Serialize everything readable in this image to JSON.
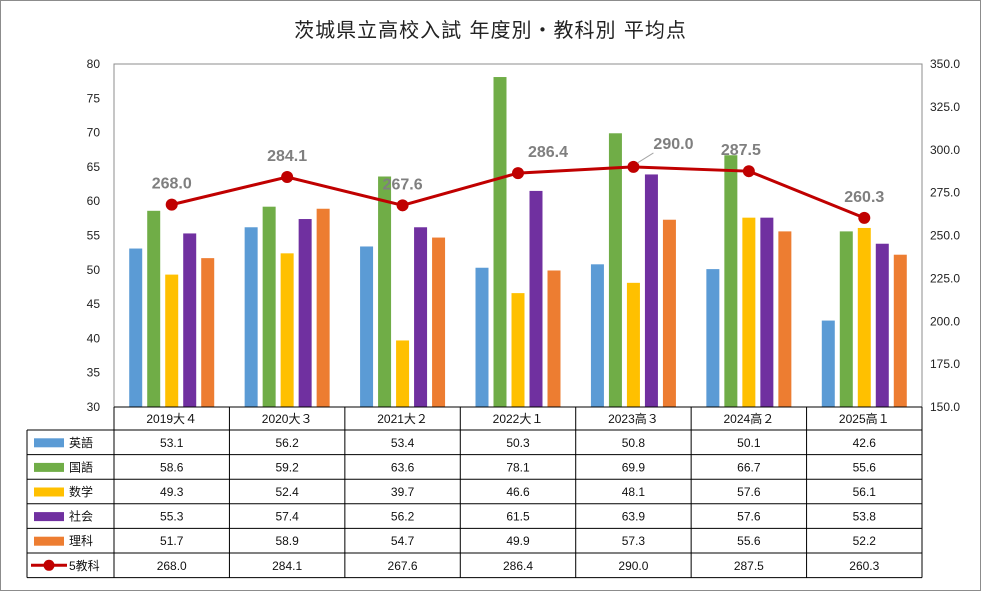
{
  "chart_data": {
    "type": "bar",
    "title": "茨城県立高校入試 年度別・教科別 平均点",
    "categories": [
      "2019大４",
      "2020大３",
      "2021大２",
      "2022大１",
      "2023高３",
      "2024高２",
      "2025高１"
    ],
    "y_left": {
      "min": 30,
      "max": 80,
      "step": 5,
      "ticks": [
        "80",
        "75",
        "70",
        "65",
        "60",
        "55",
        "50",
        "45",
        "40",
        "35",
        "30"
      ]
    },
    "y_right": {
      "min": 150,
      "max": 350,
      "step": 25,
      "ticks": [
        "350.0",
        "325.0",
        "300.0",
        "275.0",
        "250.0",
        "225.0",
        "200.0",
        "175.0",
        "150.0"
      ]
    },
    "series": [
      {
        "name": "英語",
        "color": "#5B9BD5",
        "values": [
          53.1,
          56.2,
          53.4,
          50.3,
          50.8,
          50.1,
          42.6
        ],
        "labels": [
          "53.1",
          "56.2",
          "53.4",
          "50.3",
          "50.8",
          "50.1",
          "42.6"
        ]
      },
      {
        "name": "国語",
        "color": "#70AD47",
        "values": [
          58.6,
          59.2,
          63.6,
          78.1,
          69.9,
          66.7,
          55.6
        ],
        "labels": [
          "58.6",
          "59.2",
          "63.6",
          "78.1",
          "69.9",
          "66.7",
          "55.6"
        ]
      },
      {
        "name": "数学",
        "color": "#FFC000",
        "values": [
          49.3,
          52.4,
          39.7,
          46.6,
          48.1,
          57.6,
          56.1
        ],
        "labels": [
          "49.3",
          "52.4",
          "39.7",
          "46.6",
          "48.1",
          "57.6",
          "56.1"
        ]
      },
      {
        "name": "社会",
        "color": "#7030A0",
        "values": [
          55.3,
          57.4,
          56.2,
          61.5,
          63.9,
          57.6,
          53.8
        ],
        "labels": [
          "55.3",
          "57.4",
          "56.2",
          "61.5",
          "63.9",
          "57.6",
          "53.8"
        ]
      },
      {
        "name": "理科",
        "color": "#ED7D31",
        "values": [
          51.7,
          58.9,
          54.7,
          49.9,
          57.3,
          55.6,
          52.2
        ],
        "labels": [
          "51.7",
          "58.9",
          "54.7",
          "49.9",
          "57.3",
          "55.6",
          "52.2"
        ]
      }
    ],
    "total": {
      "name": "5教科",
      "color": "#C00000",
      "axis": "right",
      "values": [
        268.0,
        284.1,
        267.6,
        286.4,
        290.0,
        287.5,
        260.3
      ],
      "labels": [
        "268.0",
        "284.1",
        "267.6",
        "286.4",
        "290.0",
        "287.5",
        "260.3"
      ]
    },
    "grid": false,
    "legend": "data-table"
  }
}
